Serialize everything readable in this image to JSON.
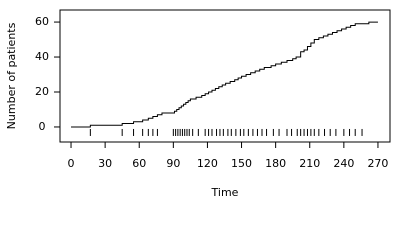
{
  "chart_data": {
    "type": "step",
    "xlabel": "Time",
    "ylabel": "Number of patients",
    "x": [
      0,
      17,
      45,
      55,
      63,
      68,
      72,
      76,
      80,
      91,
      93,
      95,
      97,
      99,
      101,
      103,
      105,
      110,
      115,
      118,
      121,
      124,
      127,
      130,
      133,
      136,
      140,
      144,
      147,
      150,
      154,
      158,
      162,
      166,
      170,
      176,
      180,
      185,
      190,
      195,
      198,
      202,
      205,
      208,
      211,
      214,
      218,
      222,
      226,
      230,
      234,
      238,
      242,
      246,
      250,
      254,
      262,
      270
    ],
    "values": [
      0,
      1,
      2,
      3,
      4,
      5,
      6,
      7,
      8,
      9,
      10,
      11,
      12,
      13,
      14,
      15,
      16,
      17,
      18,
      19,
      20,
      21,
      22,
      23,
      24,
      25,
      26,
      27,
      28,
      29,
      30,
      31,
      32,
      33,
      34,
      35,
      36,
      37,
      38,
      39,
      40,
      43,
      44,
      46,
      48,
      50,
      51,
      52,
      53,
      54,
      55,
      56,
      57,
      58,
      59,
      59,
      60,
      60
    ],
    "rug": [
      17,
      45,
      55,
      63,
      68,
      72,
      76,
      90,
      92,
      94,
      96,
      98,
      100,
      102,
      104,
      107,
      112,
      118,
      121,
      124,
      128,
      131,
      134,
      138,
      141,
      145,
      149,
      152,
      156,
      160,
      164,
      168,
      172,
      178,
      183,
      190,
      194,
      199,
      202,
      205,
      208,
      211,
      214,
      218,
      223,
      228,
      233,
      240,
      245,
      250,
      256
    ],
    "color": "#000000",
    "xlim": [
      -9.7,
      280.6
    ],
    "ylim": [
      -8.6,
      66.9
    ],
    "xticks": [
      0,
      30,
      60,
      90,
      120,
      150,
      180,
      210,
      240,
      270
    ],
    "yticks": [
      0,
      20,
      40,
      60
    ]
  }
}
